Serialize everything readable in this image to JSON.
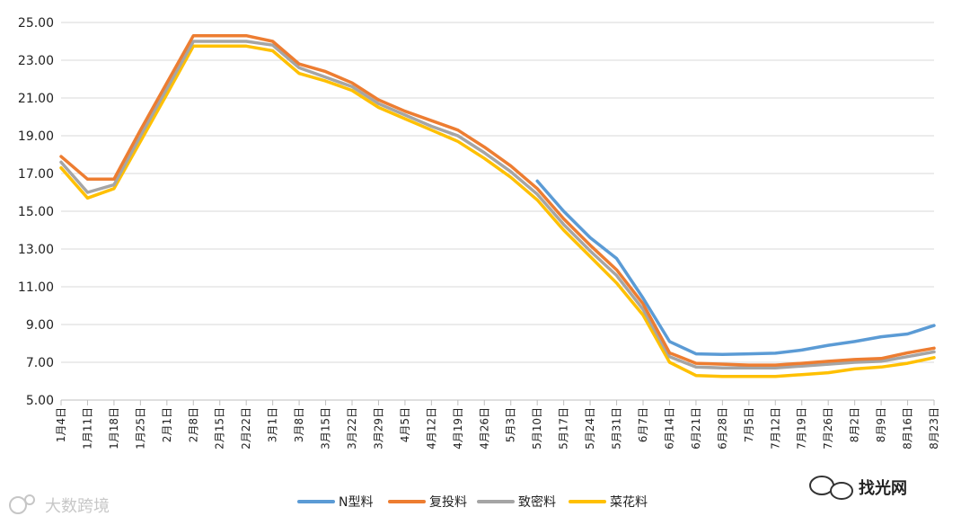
{
  "chart_data": {
    "type": "line",
    "title": "",
    "xlabel": "",
    "ylabel": "",
    "ylim": [
      5,
      25
    ],
    "yticks": [
      "5.00",
      "7.00",
      "9.00",
      "11.00",
      "13.00",
      "15.00",
      "17.00",
      "19.00",
      "21.00",
      "23.00",
      "25.00"
    ],
    "grid": "horizontal",
    "legend_position": "bottom",
    "categories": [
      "1月4日",
      "1月11日",
      "1月18日",
      "1月25日",
      "2月1日",
      "2月8日",
      "2月15日",
      "2月22日",
      "3月1日",
      "3月8日",
      "3月15日",
      "3月22日",
      "3月29日",
      "4月5日",
      "4月12日",
      "4月19日",
      "4月26日",
      "5月3日",
      "5月10日",
      "5月17日",
      "5月24日",
      "5月31日",
      "6月7日",
      "6月14日",
      "6月21日",
      "6月28日",
      "7月5日",
      "7月12日",
      "7月19日",
      "7月26日",
      "8月2日",
      "8月9日",
      "8月16日",
      "8月23日"
    ],
    "series": [
      {
        "name": "N型料",
        "color": "#5b9bd5",
        "values": [
          null,
          null,
          null,
          null,
          null,
          null,
          null,
          null,
          null,
          null,
          null,
          null,
          null,
          null,
          null,
          null,
          null,
          null,
          16.6,
          15.0,
          13.6,
          12.5,
          10.4,
          8.1,
          7.45,
          7.42,
          7.45,
          7.48,
          7.65,
          7.9,
          8.1,
          8.35,
          8.5,
          8.95
        ]
      },
      {
        "name": "复投料",
        "color": "#ed7d31",
        "values": [
          17.9,
          16.7,
          16.7,
          19.3,
          21.8,
          24.3,
          24.3,
          24.3,
          24.0,
          22.8,
          22.4,
          21.8,
          20.9,
          20.3,
          19.8,
          19.3,
          18.4,
          17.4,
          16.2,
          14.6,
          13.2,
          11.9,
          10.1,
          7.5,
          6.95,
          6.9,
          6.85,
          6.85,
          6.95,
          7.05,
          7.15,
          7.2,
          7.5,
          7.75
        ]
      },
      {
        "name": "致密料",
        "color": "#a5a5a5",
        "values": [
          17.6,
          16.0,
          16.4,
          19.0,
          21.5,
          24.0,
          24.0,
          24.0,
          23.8,
          22.6,
          22.1,
          21.6,
          20.7,
          20.1,
          19.5,
          19.0,
          18.1,
          17.1,
          15.9,
          14.3,
          12.9,
          11.6,
          9.8,
          7.3,
          6.75,
          6.7,
          6.7,
          6.7,
          6.8,
          6.9,
          7.0,
          7.05,
          7.3,
          7.55
        ]
      },
      {
        "name": "菜花料",
        "color": "#ffc000",
        "values": [
          17.3,
          15.7,
          16.2,
          18.7,
          21.2,
          23.75,
          23.75,
          23.75,
          23.5,
          22.3,
          21.9,
          21.4,
          20.5,
          19.9,
          19.3,
          18.7,
          17.8,
          16.8,
          15.6,
          14.0,
          12.6,
          11.2,
          9.5,
          7.0,
          6.3,
          6.25,
          6.25,
          6.25,
          6.35,
          6.45,
          6.65,
          6.75,
          6.95,
          7.25
        ]
      }
    ]
  },
  "watermarks": {
    "left": "大数跨境",
    "right": "找光网"
  }
}
